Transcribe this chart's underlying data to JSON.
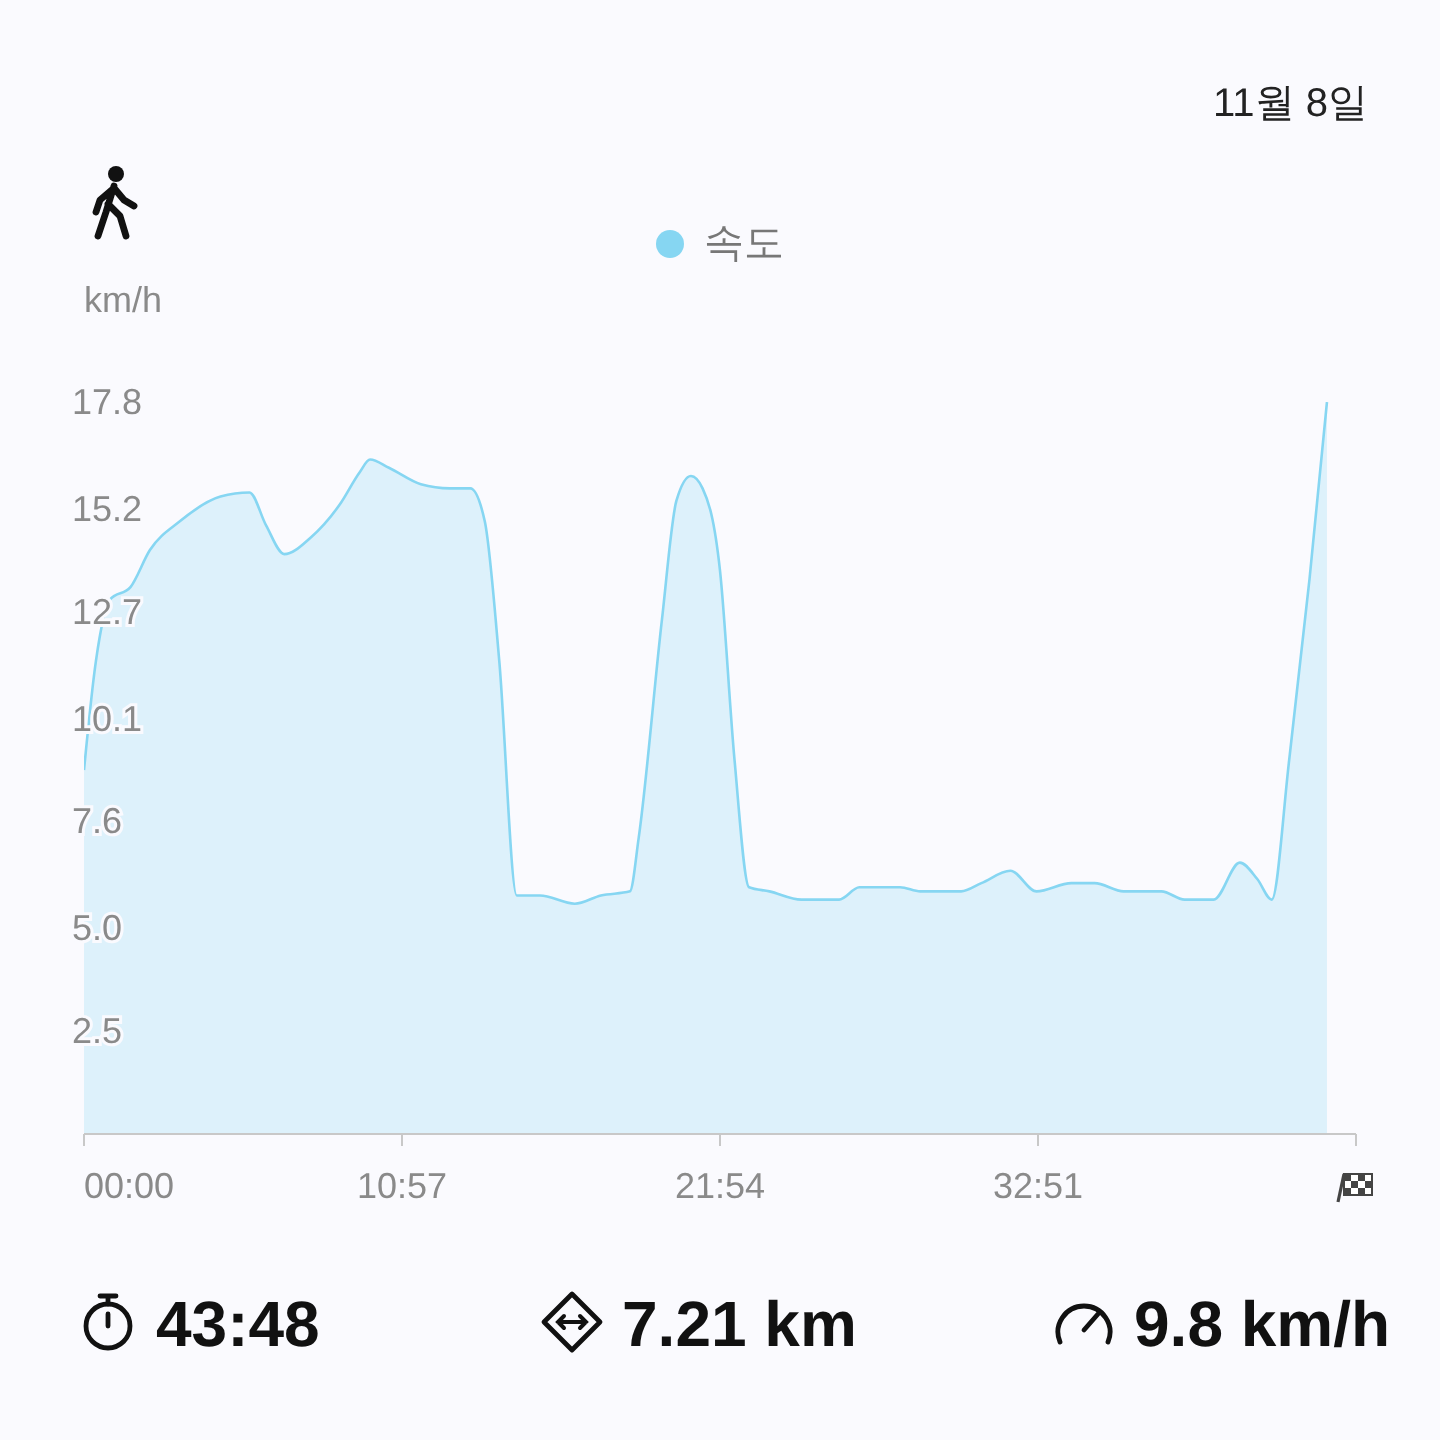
{
  "chart_data": {
    "type": "area",
    "ylabel": "km/h",
    "legend": "top",
    "annotations": [
      "11월 8일",
      "43:48",
      "7.21 km",
      "9.8 km/h"
    ],
    "x": [
      0,
      0.41,
      0.9,
      1.6,
      2.27,
      3.3,
      4.7,
      5.7,
      6.27,
      6.9,
      7.8,
      8.8,
      9.5,
      9.85,
      10.5,
      11.6,
      12.6,
      13.3,
      13.8,
      14.3,
      14.9,
      15.7,
      16.9,
      17.8,
      18.8,
      19.1,
      19.9,
      20.4,
      20.9,
      21.3,
      21.9,
      22.4,
      22.9,
      23.6,
      24.7,
      26.0,
      26.7,
      28.1,
      28.8,
      30.2,
      30.9,
      31.9,
      32.8,
      34.0,
      34.8,
      35.8,
      37.1,
      37.9,
      38.9,
      39.8,
      40.4,
      40.9,
      41.5,
      42.2,
      42.8
    ],
    "series": [
      {
        "name": "속도",
        "color": "#86d6f2",
        "values": [
          8.85,
          11.5,
          13.0,
          13.3,
          14.2,
          14.9,
          15.5,
          15.6,
          14.8,
          14.1,
          14.5,
          15.3,
          16.1,
          16.4,
          16.2,
          15.8,
          15.7,
          15.7,
          14.9,
          11.5,
          5.8,
          5.8,
          5.6,
          5.8,
          5.9,
          7.2,
          12.5,
          15.4,
          16.0,
          15.7,
          13.7,
          9.1,
          6.0,
          5.9,
          5.7,
          5.7,
          6.0,
          6.0,
          5.9,
          5.9,
          6.1,
          6.4,
          5.9,
          6.1,
          6.1,
          5.9,
          5.9,
          5.7,
          5.7,
          6.6,
          6.2,
          5.7,
          9.1,
          13.5,
          17.8
        ]
      }
    ],
    "xlim": [
      0,
      43.8
    ],
    "xticks": [
      {
        "value": 0,
        "label": "00:00"
      },
      {
        "value": 10.95,
        "label": "10:57"
      },
      {
        "value": 21.9,
        "label": "21:54"
      },
      {
        "value": 32.85,
        "label": "32:51"
      },
      {
        "value": 43.8,
        "label": null
      }
    ],
    "ylim": [
      0,
      17.8
    ],
    "yticks": [
      2.5,
      {
        "value": 5,
        "label": "5.0"
      },
      7.6,
      10.1,
      12.7,
      15.2,
      17.8
    ],
    "grid": false,
    "marker": "none"
  }
}
